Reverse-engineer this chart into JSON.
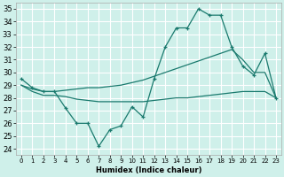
{
  "xlabel": "Humidex (Indice chaleur)",
  "ylabel": "",
  "xlim": [
    -0.5,
    23.5
  ],
  "ylim": [
    23.5,
    35.5
  ],
  "yticks": [
    24,
    25,
    26,
    27,
    28,
    29,
    30,
    31,
    32,
    33,
    34,
    35
  ],
  "xticks": [
    0,
    1,
    2,
    3,
    4,
    5,
    6,
    7,
    8,
    9,
    10,
    11,
    12,
    13,
    14,
    15,
    16,
    17,
    18,
    19,
    20,
    21,
    22,
    23
  ],
  "bg_color": "#cff0ea",
  "grid_color": "#ffffff",
  "line_color": "#1a7a6e",
  "line1": [
    29.5,
    28.8,
    28.5,
    28.5,
    27.2,
    26.0,
    26.0,
    24.2,
    25.5,
    25.8,
    27.3,
    26.5,
    29.5,
    32.0,
    33.5,
    33.5,
    35.0,
    34.5,
    34.5,
    32.0,
    30.5,
    29.8,
    31.5,
    28.0
  ],
  "line2": [
    29.0,
    28.7,
    28.5,
    28.5,
    28.6,
    28.7,
    28.8,
    28.8,
    28.9,
    29.0,
    29.2,
    29.4,
    29.7,
    30.0,
    30.3,
    30.6,
    30.9,
    31.2,
    31.5,
    31.8,
    31.0,
    30.0,
    30.0,
    28.0
  ],
  "line3": [
    29.0,
    28.5,
    28.2,
    28.2,
    28.1,
    27.9,
    27.8,
    27.7,
    27.7,
    27.7,
    27.7,
    27.7,
    27.8,
    27.9,
    28.0,
    28.0,
    28.1,
    28.2,
    28.3,
    28.4,
    28.5,
    28.5,
    28.5,
    28.0
  ]
}
